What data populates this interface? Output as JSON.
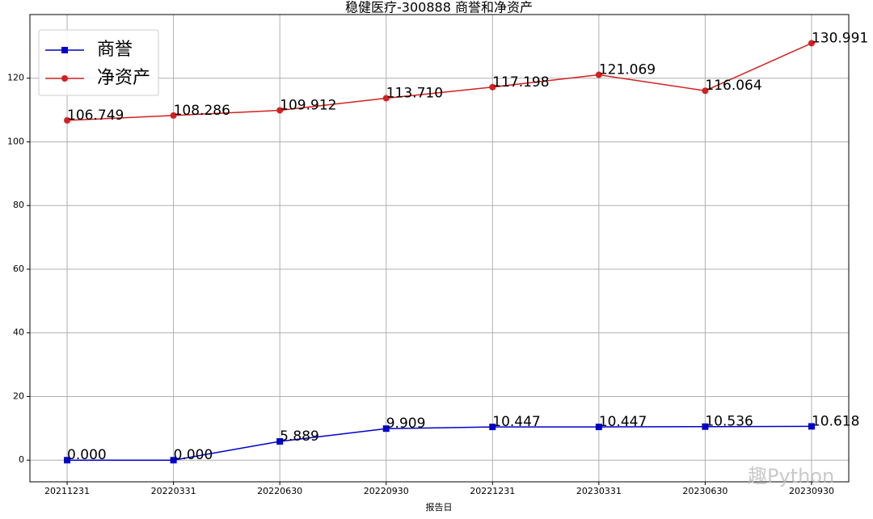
{
  "chart_data": {
    "type": "line",
    "title": "稳健医疗-300888 商誉和净资产",
    "x_label": "报告日",
    "categories": [
      "20211231",
      "20220331",
      "20220630",
      "20220930",
      "20221231",
      "20230331",
      "20230630",
      "20230930"
    ],
    "series": [
      {
        "name": "商誉",
        "color": "#0000cc",
        "marker": "square",
        "values": [
          0,
          0,
          5.889,
          9.909,
          10.447,
          10.447,
          10.536,
          10.618
        ],
        "value_labels": [
          "0.000",
          "0.000",
          "5.889",
          "9.909",
          "10.447",
          "10.447",
          "10.536",
          "10.618"
        ]
      },
      {
        "name": "净资产",
        "color": "#d42020",
        "marker": "circle",
        "values": [
          106.749,
          108.286,
          109.912,
          113.71,
          117.198,
          121.069,
          116.064,
          130.991
        ],
        "value_labels": [
          "106.749",
          "108.286",
          "109.912",
          "113.710",
          "117.198",
          "121.069",
          "116.064",
          "130.991"
        ]
      }
    ],
    "ylim": [
      -6.8,
      140
    ],
    "yticks": [
      0,
      20,
      40,
      60,
      80,
      100,
      120
    ],
    "grid": true,
    "legend": "upper left",
    "watermark": "趣Python"
  }
}
